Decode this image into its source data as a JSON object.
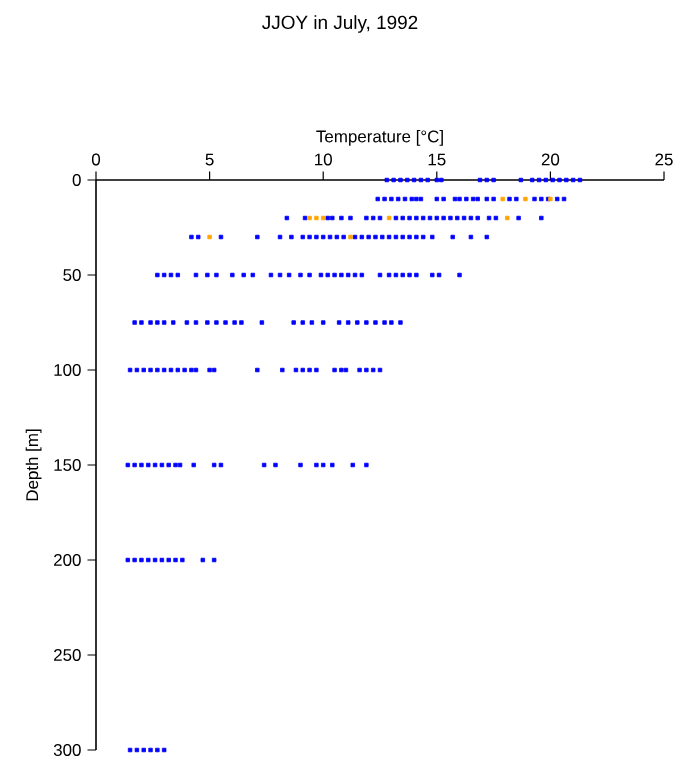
{
  "chart_data": {
    "type": "scatter",
    "title": "JJOY in July, 1992",
    "xlabel": "Temperature [°C]",
    "ylabel": "Depth [m]",
    "xlim": [
      0,
      25
    ],
    "xticks": [
      0,
      5,
      10,
      15,
      20,
      25
    ],
    "ylim": [
      300,
      0
    ],
    "yticks": [
      0,
      50,
      100,
      150,
      200,
      250,
      300
    ],
    "marker": "square",
    "series": [
      {
        "color": "#0000ff",
        "x": [
          12.8,
          13.1,
          13.4,
          13.7,
          14.0,
          14.3,
          14.6,
          15.0,
          15.2,
          16.9,
          17.2,
          17.5,
          18.7,
          19.2,
          19.5,
          19.8,
          20.1,
          20.4,
          20.7,
          21.0,
          21.3,
          12.4,
          12.7,
          13.0,
          13.3,
          13.6,
          13.9,
          14.1,
          14.3,
          15.0,
          15.3,
          15.8,
          16.0,
          16.3,
          16.6,
          16.8,
          17.2,
          17.5,
          18.2,
          18.5,
          19.3,
          19.6,
          19.9,
          20.3,
          20.6,
          8.4,
          9.2,
          10.2,
          10.4,
          10.8,
          11.2,
          11.9,
          12.2,
          12.5,
          13.2,
          13.5,
          13.8,
          14.1,
          14.4,
          14.7,
          15.0,
          15.3,
          15.6,
          15.9,
          16.2,
          16.5,
          16.8,
          17.3,
          17.6,
          18.6,
          19.6,
          4.2,
          4.5,
          5.5,
          7.1,
          8.1,
          8.6,
          9.1,
          9.4,
          9.7,
          10.0,
          10.3,
          10.6,
          10.9,
          11.4,
          11.7,
          12.0,
          12.3,
          12.6,
          12.9,
          13.2,
          13.5,
          13.8,
          14.1,
          14.4,
          14.8,
          15.7,
          16.5,
          17.2,
          2.7,
          3.0,
          3.3,
          3.6,
          4.4,
          4.9,
          5.3,
          6.0,
          6.5,
          6.9,
          7.7,
          8.1,
          8.5,
          9.0,
          9.4,
          9.9,
          10.2,
          10.5,
          10.8,
          11.1,
          11.4,
          11.7,
          12.5,
          12.9,
          13.2,
          13.5,
          13.8,
          14.1,
          14.8,
          15.1,
          16.0,
          1.7,
          2.0,
          2.4,
          2.7,
          3.0,
          3.4,
          4.0,
          4.4,
          4.9,
          5.3,
          5.7,
          6.1,
          6.4,
          7.3,
          8.7,
          9.1,
          9.5,
          10.0,
          10.7,
          11.1,
          11.5,
          11.9,
          12.3,
          12.7,
          13.0,
          13.4,
          1.5,
          1.8,
          2.1,
          2.4,
          2.7,
          3.0,
          3.3,
          3.6,
          3.9,
          4.2,
          4.4,
          5.0,
          5.2,
          7.1,
          8.2,
          8.8,
          9.1,
          9.4,
          9.7,
          10.5,
          10.8,
          11.0,
          11.6,
          11.9,
          12.2,
          12.5,
          1.4,
          1.7,
          2.0,
          2.3,
          2.6,
          2.9,
          3.2,
          3.5,
          3.7,
          4.3,
          5.2,
          5.5,
          7.4,
          7.9,
          9.0,
          9.7,
          10.0,
          10.4,
          11.3,
          11.9,
          1.4,
          1.7,
          2.0,
          2.3,
          2.6,
          2.9,
          3.2,
          3.5,
          3.8,
          4.7,
          5.2,
          1.5,
          1.8,
          2.1,
          2.4,
          2.7,
          3.0
        ],
        "values": [
          0,
          0,
          0,
          0,
          0,
          0,
          0,
          0,
          0,
          0,
          0,
          0,
          0,
          0,
          0,
          0,
          0,
          0,
          0,
          0,
          0,
          10,
          10,
          10,
          10,
          10,
          10,
          10,
          10,
          10,
          10,
          10,
          10,
          10,
          10,
          10,
          10,
          10,
          10,
          10,
          10,
          10,
          10,
          10,
          10,
          20,
          20,
          20,
          20,
          20,
          20,
          20,
          20,
          20,
          20,
          20,
          20,
          20,
          20,
          20,
          20,
          20,
          20,
          20,
          20,
          20,
          20,
          20,
          20,
          20,
          20,
          30,
          30,
          30,
          30,
          30,
          30,
          30,
          30,
          30,
          30,
          30,
          30,
          30,
          30,
          30,
          30,
          30,
          30,
          30,
          30,
          30,
          30,
          30,
          30,
          30,
          30,
          30,
          30,
          50,
          50,
          50,
          50,
          50,
          50,
          50,
          50,
          50,
          50,
          50,
          50,
          50,
          50,
          50,
          50,
          50,
          50,
          50,
          50,
          50,
          50,
          50,
          50,
          50,
          50,
          50,
          50,
          50,
          50,
          50,
          75,
          75,
          75,
          75,
          75,
          75,
          75,
          75,
          75,
          75,
          75,
          75,
          75,
          75,
          75,
          75,
          75,
          75,
          75,
          75,
          75,
          75,
          75,
          75,
          75,
          75,
          100,
          100,
          100,
          100,
          100,
          100,
          100,
          100,
          100,
          100,
          100,
          100,
          100,
          100,
          100,
          100,
          100,
          100,
          100,
          100,
          100,
          100,
          100,
          100,
          100,
          100,
          150,
          150,
          150,
          150,
          150,
          150,
          150,
          150,
          150,
          150,
          150,
          150,
          150,
          150,
          150,
          150,
          150,
          150,
          150,
          150,
          200,
          200,
          200,
          200,
          200,
          200,
          200,
          200,
          200,
          200,
          200,
          300,
          300,
          300,
          300,
          300,
          300
        ]
      },
      {
        "color": "#ffa500",
        "x": [
          17.9,
          18.9,
          20.0,
          9.4,
          9.7,
          10.0,
          12.9,
          18.1,
          5.0,
          11.2
        ],
        "values": [
          10,
          10,
          10,
          20,
          20,
          20,
          20,
          20,
          30,
          30
        ]
      }
    ]
  }
}
